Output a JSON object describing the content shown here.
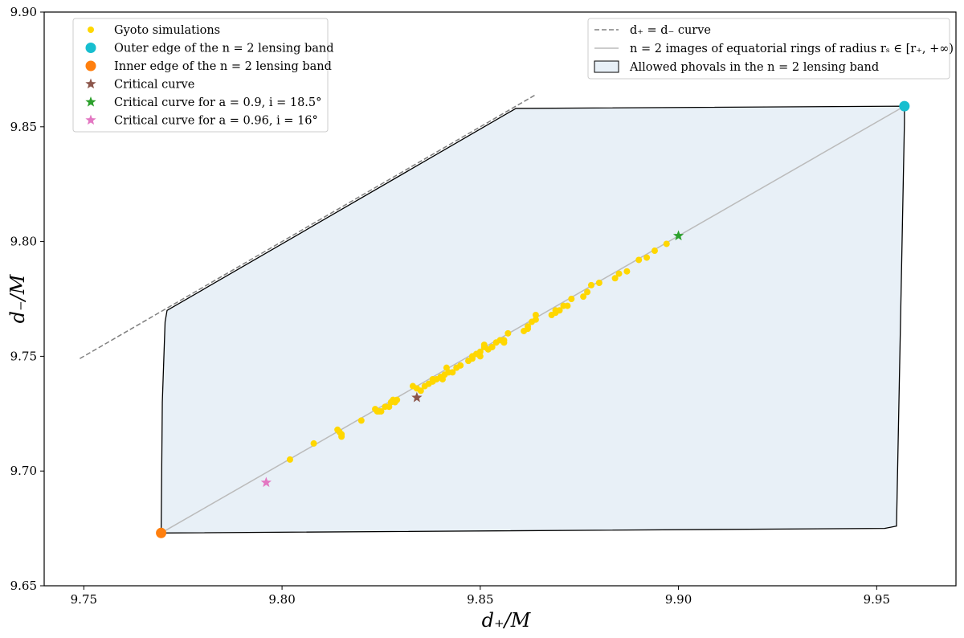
{
  "chart_data": {
    "type": "scatter",
    "xlabel": "d₊/M",
    "ylabel": "d₋/M",
    "xlim": [
      9.74,
      9.97
    ],
    "ylim": [
      9.65,
      9.9
    ],
    "xticks": [
      "9.75",
      "9.80",
      "9.85",
      "9.90",
      "9.95"
    ],
    "yticks": [
      "9.65",
      "9.70",
      "9.75",
      "9.80",
      "9.85",
      "9.90"
    ],
    "grid": false,
    "legend_left": {
      "placement": "top-left",
      "entries": [
        {
          "label": "Gyoto simulations",
          "marker": "dot",
          "color": "#FFD700"
        },
        {
          "label": "Outer edge of the n = 2 lensing band",
          "marker": "circle",
          "color": "#17BECF"
        },
        {
          "label": "Inner edge of the n = 2 lensing band",
          "marker": "circle",
          "color": "#FF7F0E"
        },
        {
          "label": "Critical curve",
          "marker": "star",
          "color": "#8C564B"
        },
        {
          "label": "Critical curve for a = 0.9, i = 18.5°",
          "marker": "star",
          "color": "#2CA02C"
        },
        {
          "label": "Critical curve for a = 0.96, i = 16°",
          "marker": "star",
          "color": "#E377C2"
        }
      ]
    },
    "legend_right": {
      "placement": "top-right",
      "entries": [
        {
          "label": "d₊ = d₋ curve",
          "marker": "dashed-line",
          "color": "#808080"
        },
        {
          "label": "n = 2 images of equatorial rings of radius rₛ ∈ [r₊, +∞)",
          "marker": "line",
          "color": "#BBBBBB"
        },
        {
          "label": "Allowed phovals in the n = 2 lensing band",
          "marker": "patch",
          "color": "#E8F0F7"
        }
      ]
    },
    "diagonal": {
      "x": [
        9.749,
        9.864
      ],
      "y": [
        9.749,
        9.864
      ],
      "color": "#808080"
    },
    "rings_line": {
      "x": [
        9.7695,
        9.957
      ],
      "y": [
        9.673,
        9.859
      ],
      "color": "#BBBBBB"
    },
    "band_region": {
      "fill": "#E8F0F7",
      "edge": "#000000",
      "x": [
        9.7695,
        9.7698,
        9.7705,
        9.771,
        9.859,
        9.957,
        9.957,
        9.955,
        9.952,
        9.7695
      ],
      "y": [
        9.673,
        9.73,
        9.765,
        9.77,
        9.858,
        9.859,
        9.852,
        9.676,
        9.675,
        9.673
      ]
    },
    "gyoto_points": {
      "color": "#FFD700",
      "x": [
        9.802,
        9.808,
        9.814,
        9.8145,
        9.815,
        9.815,
        9.82,
        9.8235,
        9.824,
        9.8245,
        9.825,
        9.826,
        9.827,
        9.8275,
        9.828,
        9.8285,
        9.829,
        9.833,
        9.834,
        9.835,
        9.836,
        9.837,
        9.838,
        9.838,
        9.839,
        9.84,
        9.8405,
        9.841,
        9.8415,
        9.842,
        9.843,
        9.844,
        9.845,
        9.847,
        9.848,
        9.848,
        9.849,
        9.85,
        9.85,
        9.851,
        9.851,
        9.852,
        9.853,
        9.854,
        9.855,
        9.856,
        9.856,
        9.857,
        9.861,
        9.862,
        9.862,
        9.863,
        9.864,
        9.864,
        9.868,
        9.869,
        9.869,
        9.87,
        9.871,
        9.872,
        9.873,
        9.876,
        9.877,
        9.878,
        9.88,
        9.884,
        9.885,
        9.887,
        9.89,
        9.892,
        9.894,
        9.897
      ],
      "y": [
        9.705,
        9.712,
        9.718,
        9.717,
        9.716,
        9.715,
        9.722,
        9.727,
        9.726,
        9.726,
        9.726,
        9.728,
        9.728,
        9.73,
        9.731,
        9.73,
        9.731,
        9.737,
        9.736,
        9.735,
        9.737,
        9.738,
        9.739,
        9.74,
        9.74,
        9.741,
        9.74,
        9.742,
        9.745,
        9.743,
        9.743,
        9.745,
        9.746,
        9.748,
        9.749,
        9.75,
        9.751,
        9.75,
        9.752,
        9.754,
        9.755,
        9.753,
        9.754,
        9.756,
        9.757,
        9.757,
        9.756,
        9.76,
        9.761,
        9.762,
        9.763,
        9.765,
        9.766,
        9.768,
        9.768,
        9.769,
        9.77,
        9.77,
        9.772,
        9.772,
        9.775,
        9.776,
        9.778,
        9.781,
        9.782,
        9.784,
        9.786,
        9.787,
        9.792,
        9.793,
        9.796,
        9.799
      ]
    },
    "outer_edge": {
      "x": 9.957,
      "y": 9.859,
      "color": "#17BECF"
    },
    "inner_edge": {
      "x": 9.7695,
      "y": 9.673,
      "color": "#FF7F0E"
    },
    "critical_curve": {
      "x": 9.834,
      "y": 9.732,
      "color": "#8C564B"
    },
    "critical_curve_a09": {
      "x": 9.9,
      "y": 9.8025,
      "color": "#2CA02C"
    },
    "critical_curve_a096": {
      "x": 9.796,
      "y": 9.695,
      "color": "#E377C2"
    }
  }
}
